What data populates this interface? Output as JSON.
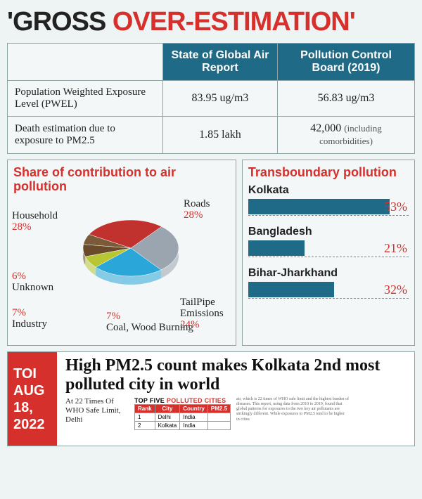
{
  "headline": {
    "part1": "'GROSS ",
    "part2": "OVER-ESTIMATION'"
  },
  "compare_table": {
    "columns": [
      "",
      "State of Global Air Report",
      "Pollution Control Board (2019)"
    ],
    "rows": [
      {
        "label": "Population Weighted Exposure Level (PWEL)",
        "v1": "83.95 ug/m3",
        "v2": "56.83 ug/m3",
        "v2_note": ""
      },
      {
        "label": "Death estimation due to exposure to PM2.5",
        "v1": "1.85 lakh",
        "v2": "42,000",
        "v2_note": "(including comorbidities)"
      }
    ],
    "header_bg": "#1f6a86",
    "border_color": "#8da3a3"
  },
  "pie": {
    "title": "Share of contribution to air pollution",
    "slices": [
      {
        "name": "Roads",
        "pct": 28,
        "color": "#9aa5af"
      },
      {
        "name": "TailPipe Emissions",
        "pct": 24,
        "color": "#2aa7d8"
      },
      {
        "name": "Coal, Wood Burning",
        "pct": 7,
        "color": "#b8c633"
      },
      {
        "name": "Industry",
        "pct": 7,
        "color": "#6b4a2a"
      },
      {
        "name": "Unknown",
        "pct": 6,
        "color": "#7a5a38"
      },
      {
        "name": "Household",
        "pct": 28,
        "color": "#c1322e"
      }
    ],
    "start_angle": -50,
    "direction": "clockwise",
    "tilt": true
  },
  "bars": {
    "title": "Transboundary pollution",
    "max": 60,
    "bar_color": "#1f6a86",
    "value_color": "#d6302c",
    "items": [
      {
        "label": "Kolkata",
        "pct": 53
      },
      {
        "label": "Bangladesh",
        "pct": 21
      },
      {
        "label": "Bihar-Jharkhand",
        "pct": 32
      }
    ]
  },
  "clipping": {
    "datebox": {
      "org": "TOI",
      "month": "AUG",
      "day": "18,",
      "year": "2022",
      "bg": "#d6302c"
    },
    "headline": "High PM2.5 count makes Kolkata 2nd most polluted city in world",
    "subhead": "At 22 Times Of WHO Safe Limit, Delhi",
    "table": {
      "caption_black": "TOP FIVE ",
      "caption_red": "POLLUTED CITIES",
      "columns": [
        "Rank",
        "City",
        "Country",
        "PM2.5"
      ],
      "rows": [
        [
          "1",
          "Delhi",
          "India",
          ""
        ],
        [
          "2",
          "Kolkata",
          "India",
          ""
        ]
      ]
    },
    "blurb": "air, which is 22 times of WHO safe limit and the highest burden of diseases. This report, using data from 2010 to 2019, found that global patterns for exposures to the two key air pollutants are strikingly different. While exposures to PM2.5 tend to be higher in cities"
  },
  "colors": {
    "red": "#d6302c",
    "teal_dark": "#1f6a86",
    "bg": "#eef3f3"
  }
}
